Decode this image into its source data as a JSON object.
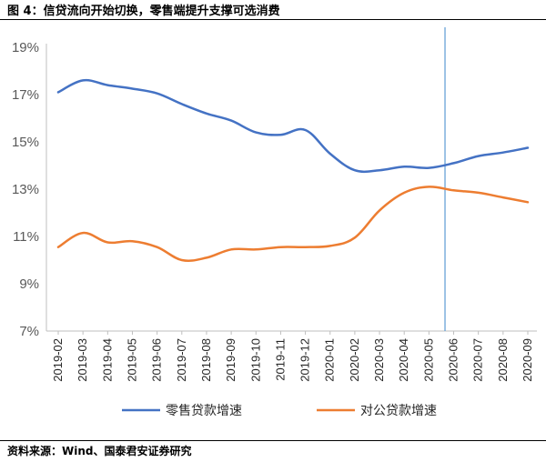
{
  "figure_title": "图 4：信贷流向开始切换，零售端提升支撑可选消费",
  "source_note": "资料来源：Wind、国泰君安证券研究",
  "chart_data": {
    "type": "line",
    "title": "",
    "xlabel": "",
    "ylabel": "",
    "x": [
      "2019-02",
      "2019-03",
      "2019-04",
      "2019-05",
      "2019-06",
      "2019-07",
      "2019-08",
      "2019-09",
      "2019-10",
      "2019-11",
      "2019-12",
      "2020-01",
      "2020-02",
      "2020-03",
      "2020-04",
      "2020-05",
      "2020-06",
      "2020-07",
      "2020-08",
      "2020-09"
    ],
    "ylim": [
      7,
      19
    ],
    "yticks": [
      7,
      9,
      11,
      13,
      15,
      17,
      19
    ],
    "ytick_labels": [
      "7%",
      "9%",
      "11%",
      "13%",
      "15%",
      "17%",
      "19%"
    ],
    "grid": false,
    "legend_position": "bottom",
    "vline_between": [
      "2020-05",
      "2020-06"
    ],
    "series": [
      {
        "name": "零售贷款增速",
        "color": "#4472C4",
        "values": [
          17.1,
          17.6,
          17.4,
          17.25,
          17.05,
          16.6,
          16.2,
          15.9,
          15.4,
          15.3,
          15.5,
          14.5,
          13.8,
          13.8,
          13.95,
          13.9,
          14.1,
          14.4,
          14.55,
          14.75
        ]
      },
      {
        "name": "对公贷款增速",
        "color": "#ED7D31",
        "values": [
          10.55,
          11.15,
          10.75,
          10.8,
          10.55,
          10.0,
          10.1,
          10.45,
          10.45,
          10.55,
          10.55,
          10.6,
          10.95,
          12.1,
          12.85,
          13.1,
          12.95,
          12.85,
          12.65,
          12.45
        ]
      }
    ],
    "vline_color": "#5B9BD5"
  }
}
